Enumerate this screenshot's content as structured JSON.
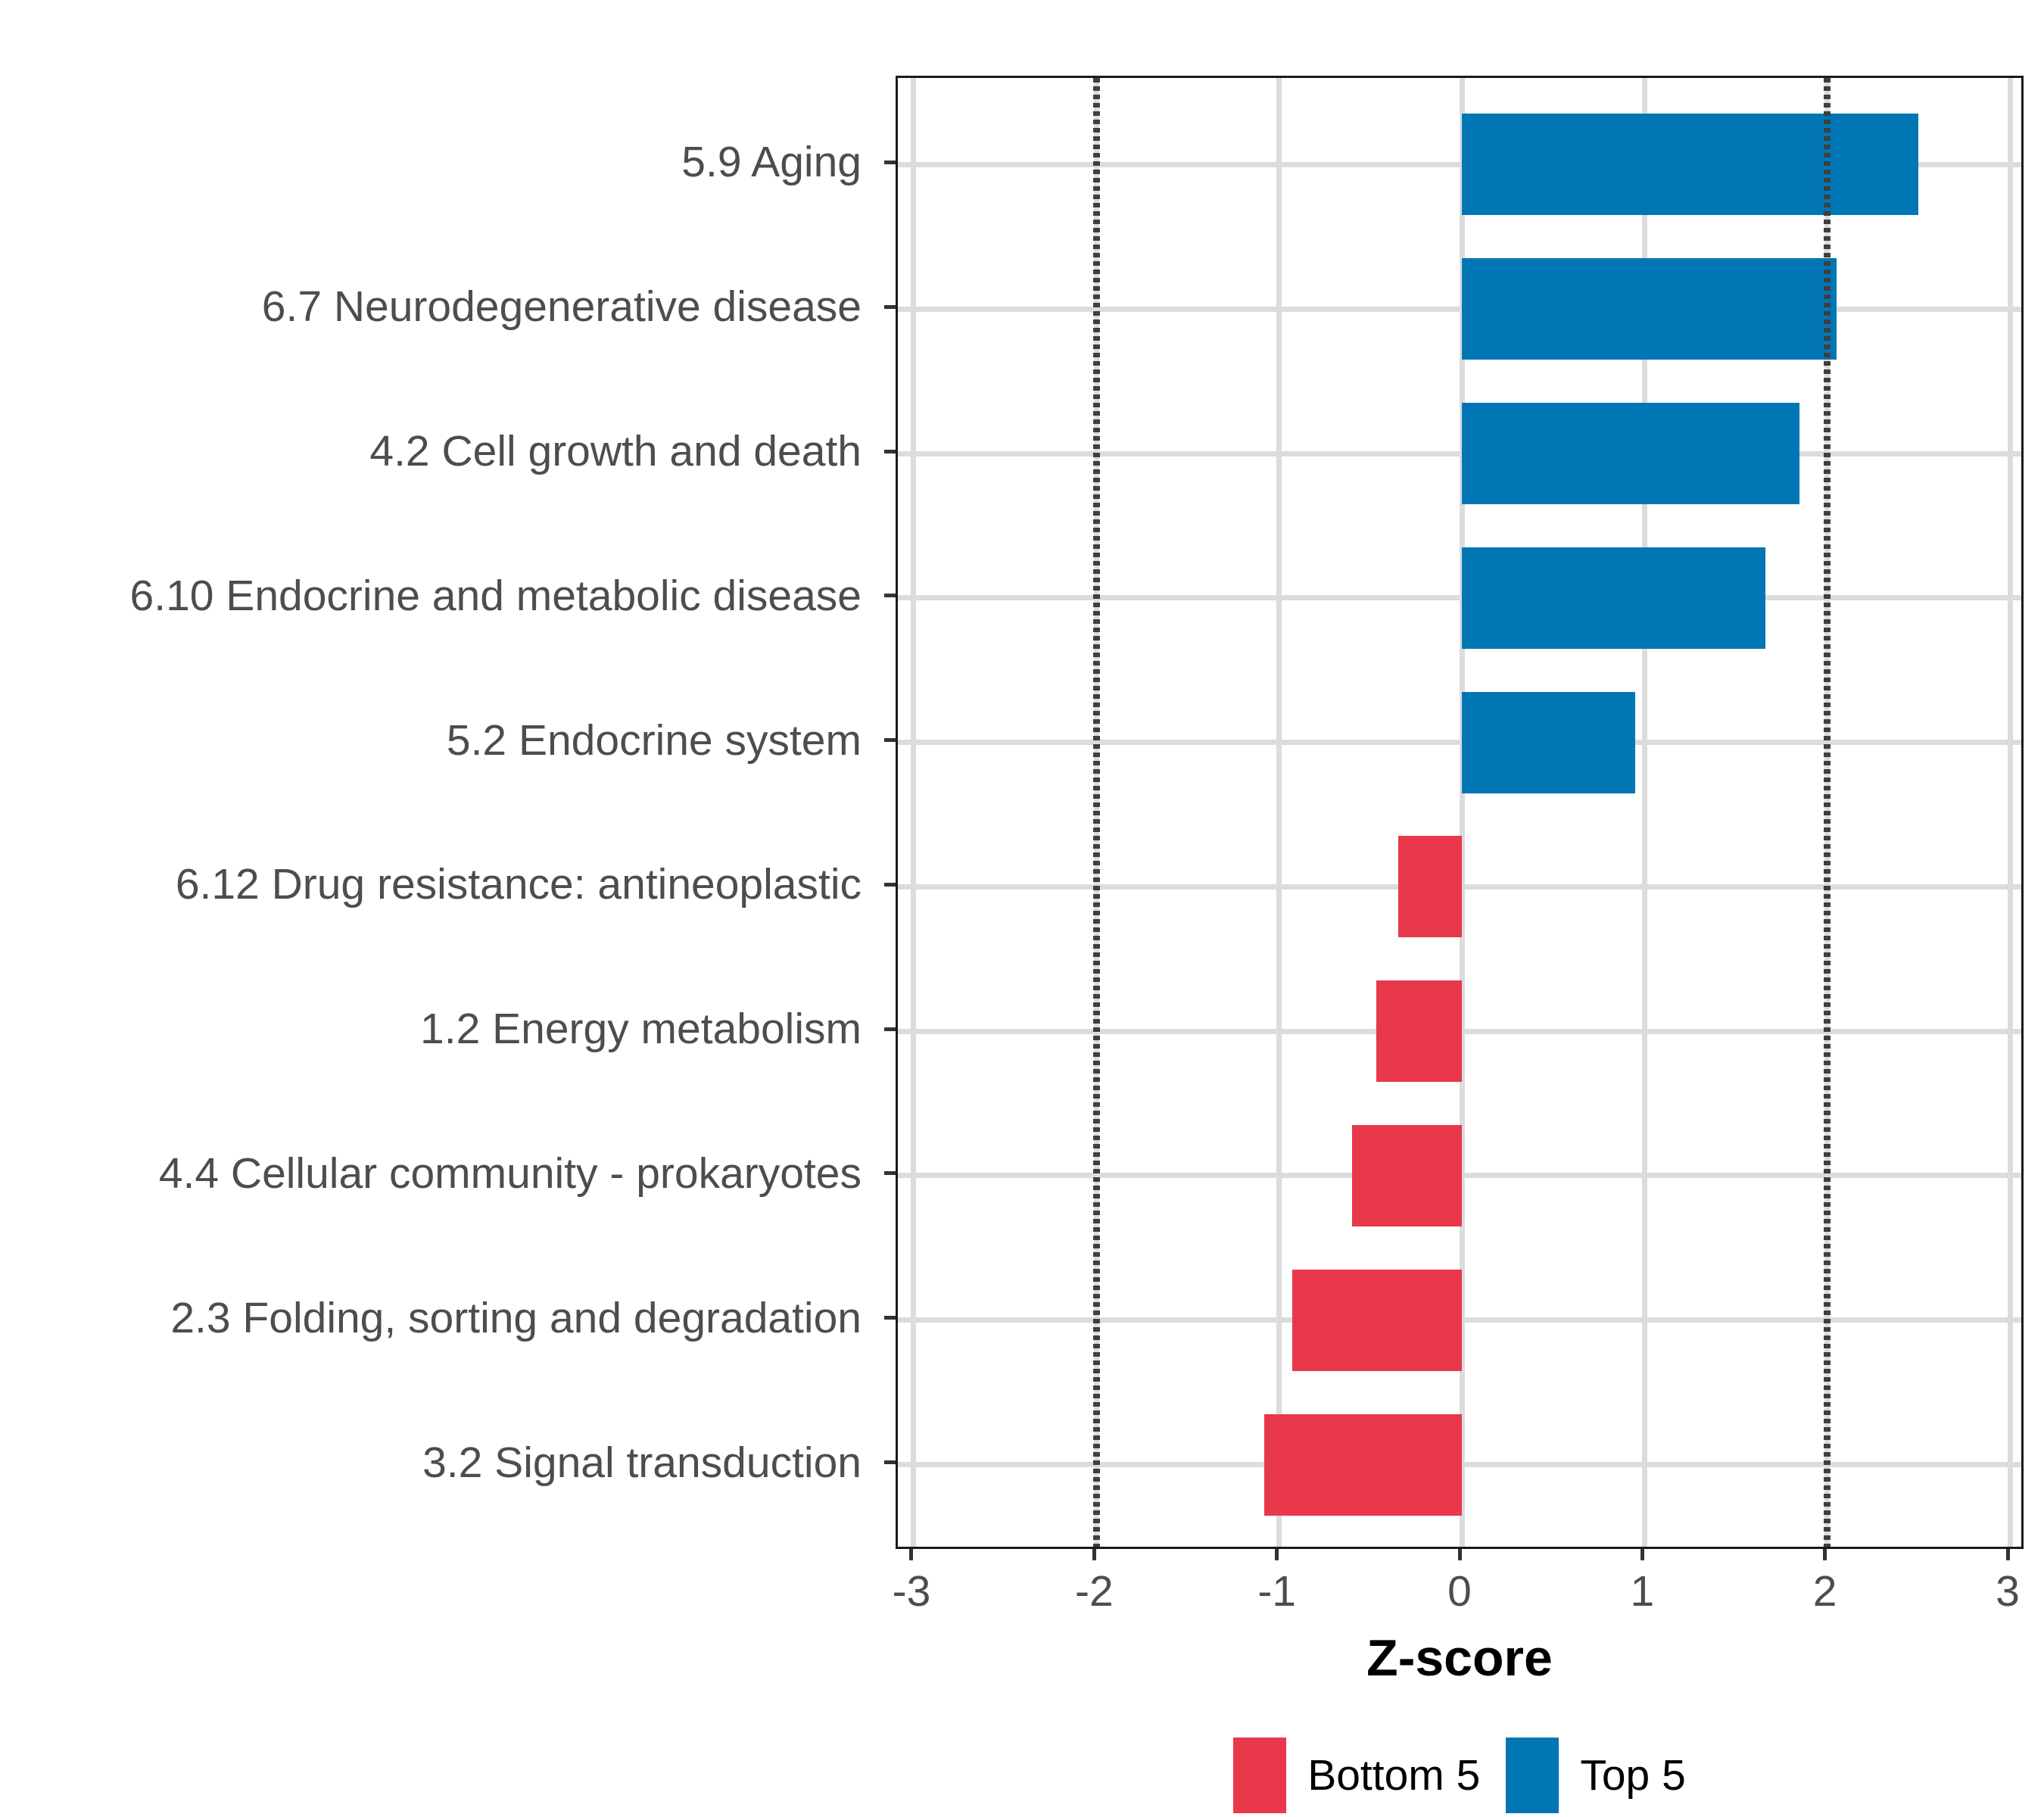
{
  "chart_data": {
    "type": "bar",
    "orientation": "horizontal",
    "xlabel": "Z-score",
    "xlim": [
      -3.087,
      3.087
    ],
    "x_ticks": [
      -3,
      -2,
      -1,
      0,
      1,
      2,
      3
    ],
    "grid": "major gridlines on, light gray",
    "legend_position": "bottom-center",
    "reference_lines": {
      "values": [
        -2,
        2
      ],
      "style": "dotted"
    },
    "categories": [
      "5.9 Aging",
      "6.7 Neurodegenerative disease",
      "4.2 Cell growth and death",
      "6.10 Endocrine and metabolic disease",
      "5.2 Endocrine system",
      "6.12 Drug resistance: antineoplastic",
      "1.2 Energy metabolism",
      "4.4 Cellular community - prokaryotes",
      "2.3 Folding, sorting and degradation",
      "3.2 Signal transduction"
    ],
    "values": [
      2.5,
      2.05,
      1.85,
      1.66,
      0.95,
      -0.35,
      -0.47,
      -0.6,
      -0.93,
      -1.08
    ],
    "groups": [
      "Top 5",
      "Top 5",
      "Top 5",
      "Top 5",
      "Top 5",
      "Bottom 5",
      "Bottom 5",
      "Bottom 5",
      "Bottom 5",
      "Bottom 5"
    ],
    "series_colors": {
      "Top 5": "#0077B4",
      "Bottom 5": "#E8384A"
    },
    "legend": [
      {
        "label": "Bottom 5",
        "color": "#E8384A"
      },
      {
        "label": "Top 5",
        "color": "#0077B4"
      }
    ]
  },
  "colors": {
    "grid": "#DCDCDC",
    "panel_border": "#1A1A1A",
    "reference_line": "#3F3F3F",
    "tick_mark": "#333333",
    "axis_text": "#4D4D4D",
    "axis_title": "#000000",
    "background": "#FFFFFF"
  }
}
